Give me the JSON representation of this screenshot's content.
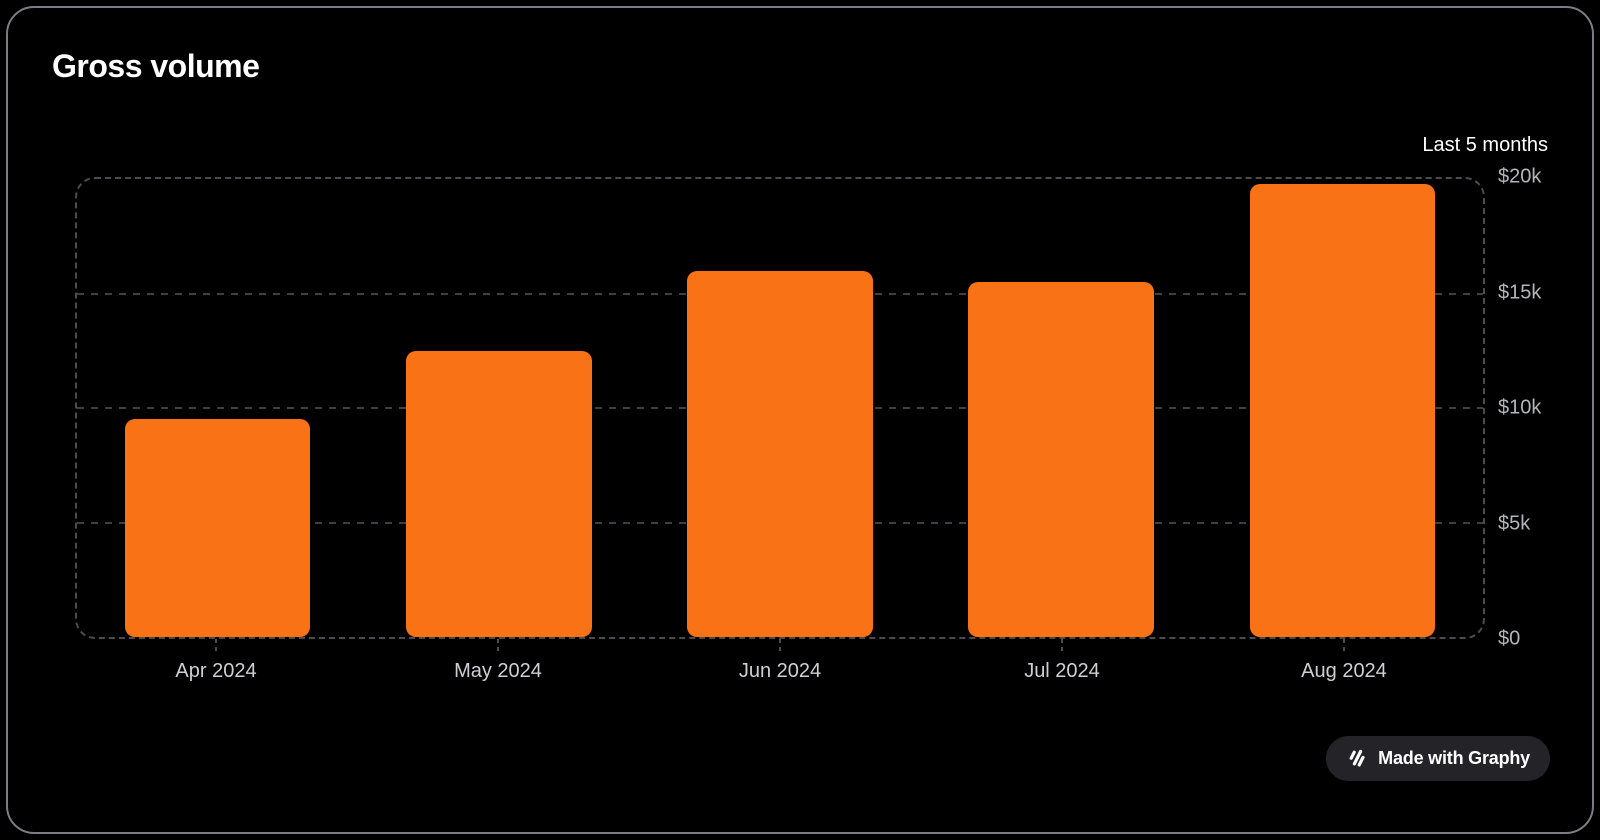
{
  "card": {
    "title": "Gross volume"
  },
  "chart_data": {
    "type": "bar",
    "title": "Gross volume",
    "subtitle": "Last 5 months",
    "categories": [
      "Apr 2024",
      "May 2024",
      "Jun 2024",
      "Jul 2024",
      "Aug 2024"
    ],
    "values": [
      9500,
      12500,
      16000,
      15500,
      19800
    ],
    "value_unit": "USD",
    "xlabel": "",
    "ylabel": "",
    "ylim": [
      0,
      20000
    ],
    "y_ticks": [
      {
        "value": 20000,
        "label": "$20k"
      },
      {
        "value": 15000,
        "label": "$15k"
      },
      {
        "value": 10000,
        "label": "$10k"
      },
      {
        "value": 5000,
        "label": "$5k"
      },
      {
        "value": 0,
        "label": "$0"
      }
    ],
    "grid": "horizontal-dashed",
    "legend_position": "none",
    "bar_color": "#f97316"
  },
  "badge": {
    "label": "Made with Graphy",
    "icon": "graphy-logo-icon"
  },
  "colors": {
    "background": "#000000",
    "card_border": "#7c7c82",
    "title_text": "#ffffff",
    "subtitle_text": "#ffffff",
    "y_label_text": "#b2b5ba",
    "x_label_text": "#cdd0d4",
    "gridline": "#3f3f44",
    "plot_border": "#4b4b50",
    "bar": "#f97316",
    "badge_background": "#232328",
    "badge_text": "#ffffff"
  }
}
